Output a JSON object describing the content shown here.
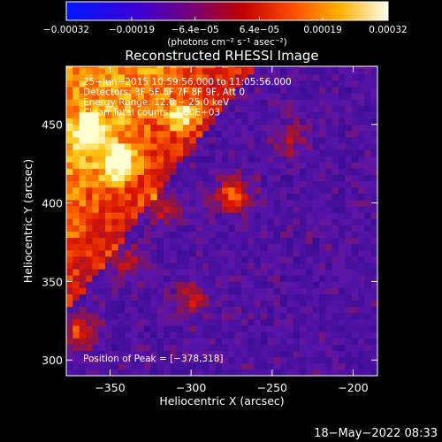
{
  "chart_data": {
    "type": "heatmap",
    "title": "Reconstructed RHESSI Image",
    "xlabel": "Heliocentric X (arcsec)",
    "ylabel": "Heliocentric Y (arcsec)",
    "xlim": [
      -377,
      -185
    ],
    "ylim": [
      290,
      487
    ],
    "x_ticks": [
      -350,
      -300,
      -250,
      -200
    ],
    "x_tick_labels": [
      "−350",
      "−300",
      "−250",
      "−200"
    ],
    "y_ticks": [
      300,
      350,
      400,
      450
    ],
    "y_tick_labels": [
      "300",
      "350",
      "400",
      "450"
    ],
    "colorbar": {
      "min": -0.00032,
      "max": 0.00032,
      "ticks": [
        -0.00032,
        -0.00019,
        -6.4e-05,
        6.4e-05,
        0.00019,
        0.00032
      ],
      "tick_labels": [
        "−0.00032",
        "−0.00019",
        "−6.4e−05",
        "6.4e−05",
        "0.00019",
        "0.00032"
      ],
      "unit_text": "(photons cm⁻² s⁻¹ asec⁻²)"
    },
    "annotations": [
      "25−Jun−2015 10:59:56.000 to 11:05:56.000",
      "Detectors: 3F 5F 6F 7F 8F 9F, Att 0",
      "Energy Range: 12.0 − 25.0 keV",
      "Clean     Total counts: 7.80E+03"
    ],
    "peak_label": "Position of Peak = [−378,318]",
    "peak": [
      -378,
      318
    ],
    "hot_spots": [
      {
        "x": -344,
        "y": 425,
        "intensity": 1.0
      },
      {
        "x": -274,
        "y": 405,
        "intensity": 1.0
      },
      {
        "x": -362,
        "y": 445,
        "intensity": 0.8
      },
      {
        "x": -305,
        "y": 455,
        "intensity": 0.75
      },
      {
        "x": -318,
        "y": 398,
        "intensity": 0.7
      },
      {
        "x": -300,
        "y": 338,
        "intensity": 0.65
      },
      {
        "x": -368,
        "y": 318,
        "intensity": 0.9
      },
      {
        "x": -340,
        "y": 362,
        "intensity": 0.6
      },
      {
        "x": -240,
        "y": 440,
        "intensity": 0.5
      }
    ]
  },
  "footer": {
    "date": "18−May−2022 08:33"
  }
}
